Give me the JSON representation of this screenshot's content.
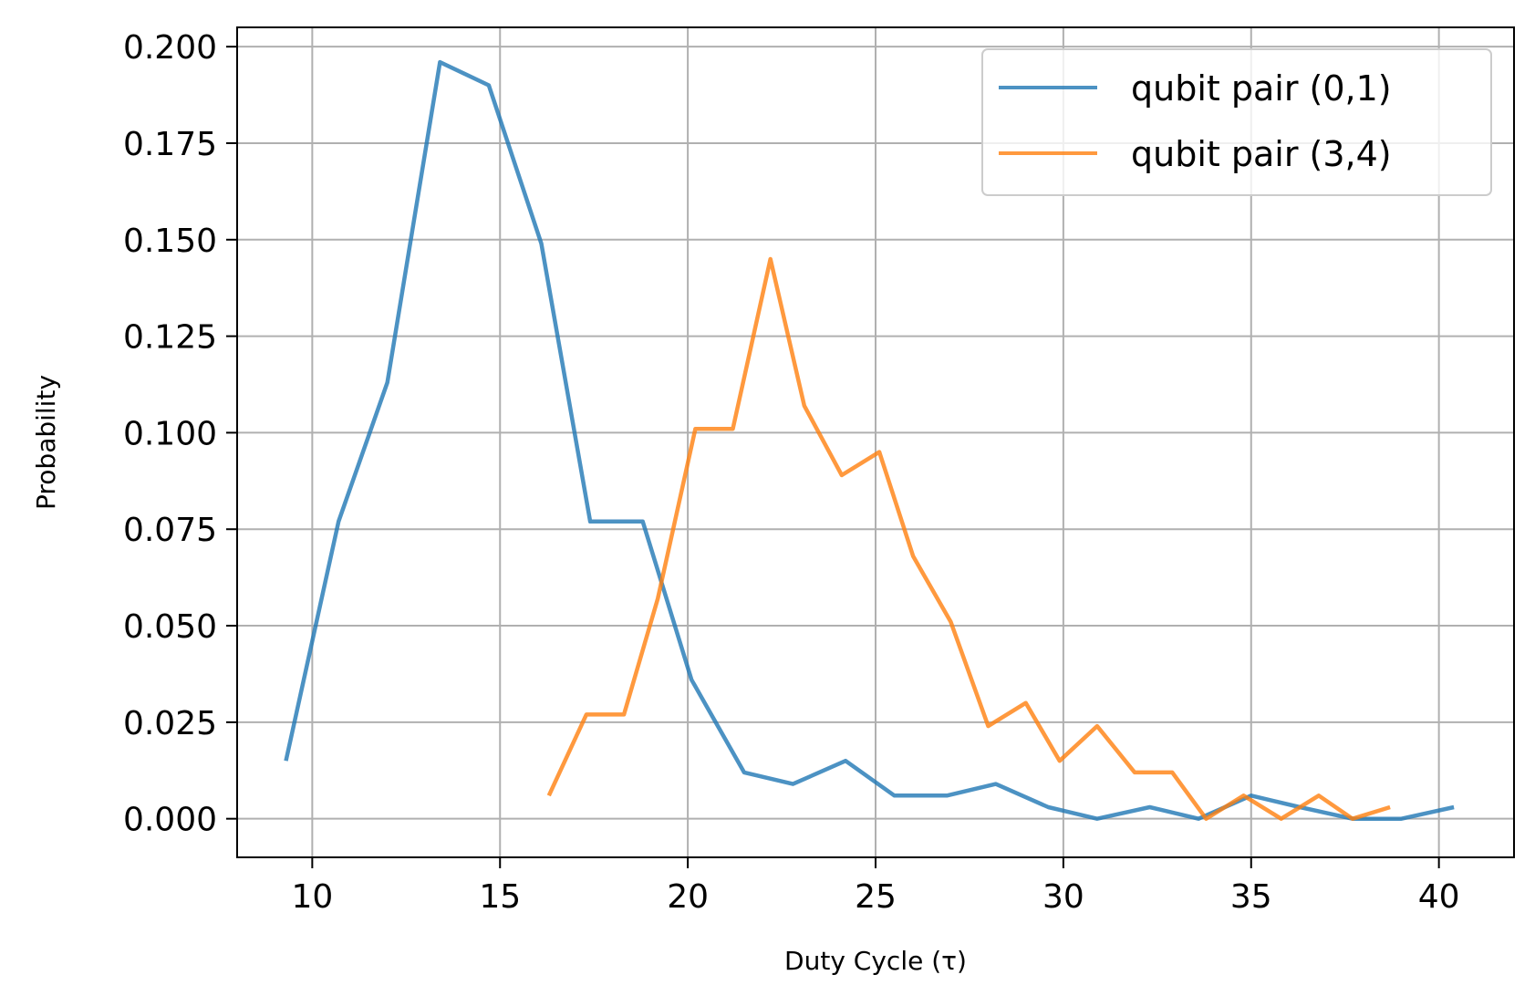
{
  "chart_data": {
    "type": "line",
    "title": "",
    "xlabel": "Duty Cycle (τ)",
    "ylabel": "Probability",
    "xlim": [
      8,
      42
    ],
    "ylim": [
      -0.01,
      0.205
    ],
    "xticks": [
      10,
      15,
      20,
      25,
      30,
      35,
      40
    ],
    "yticks": [
      0.0,
      0.025,
      0.05,
      0.075,
      0.1,
      0.125,
      0.15,
      0.175,
      0.2
    ],
    "xtick_labels": [
      "10",
      "15",
      "20",
      "25",
      "30",
      "35",
      "40"
    ],
    "ytick_labels": [
      "0.000",
      "0.025",
      "0.050",
      "0.075",
      "0.100",
      "0.125",
      "0.150",
      "0.175",
      "0.200"
    ],
    "grid": true,
    "legend_position": "top-right",
    "series": [
      {
        "name": "qubit pair (0,1)",
        "color": "#1f77b4",
        "x": [
          9.3,
          10.7,
          12.0,
          13.4,
          14.7,
          16.1,
          17.4,
          18.8,
          20.1,
          21.5,
          22.8,
          24.2,
          25.5,
          26.9,
          28.2,
          29.6,
          30.9,
          32.3,
          33.6,
          35.0,
          36.3,
          37.7,
          39.0,
          40.4
        ],
        "y": [
          0.015,
          0.077,
          0.113,
          0.196,
          0.19,
          0.149,
          0.077,
          0.077,
          0.036,
          0.012,
          0.009,
          0.015,
          0.006,
          0.006,
          0.009,
          0.003,
          0.0,
          0.003,
          0.0,
          0.006,
          0.003,
          0.0,
          0.0,
          0.003
        ]
      },
      {
        "name": "qubit pair (3,4)",
        "color": "#ff7f0e",
        "x": [
          16.3,
          17.3,
          18.3,
          19.2,
          20.2,
          21.2,
          22.2,
          23.1,
          24.1,
          25.1,
          26.0,
          27.0,
          28.0,
          29.0,
          29.9,
          30.9,
          31.9,
          32.9,
          33.8,
          34.8,
          35.8,
          36.8,
          37.7,
          38.7
        ],
        "y": [
          0.006,
          0.027,
          0.027,
          0.057,
          0.101,
          0.101,
          0.145,
          0.107,
          0.089,
          0.095,
          0.068,
          0.051,
          0.024,
          0.03,
          0.015,
          0.024,
          0.012,
          0.012,
          0.0,
          0.006,
          0.0,
          0.006,
          0.0,
          0.003
        ]
      }
    ]
  }
}
